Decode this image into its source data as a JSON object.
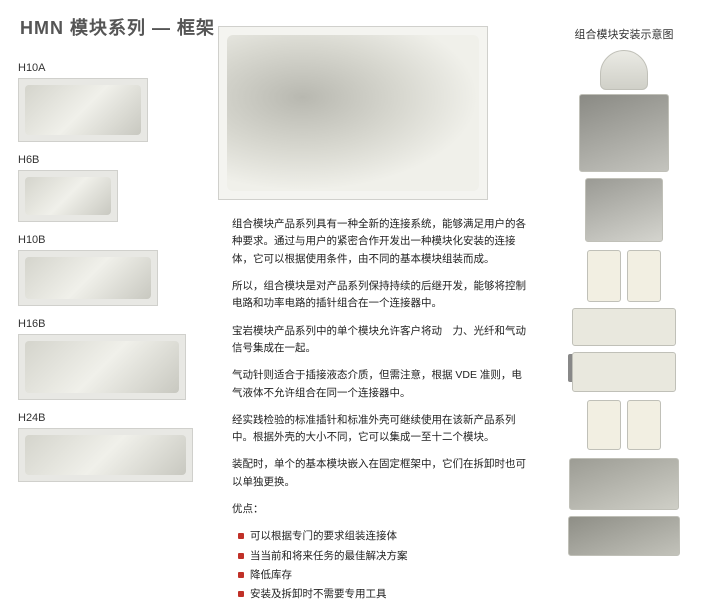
{
  "title": "HMN 模块系列 — 框架",
  "left_products": [
    {
      "label": "H10A",
      "img_class": "img-h10a"
    },
    {
      "label": "H6B",
      "img_class": "img-h6b"
    },
    {
      "label": "H10B",
      "img_class": "img-h10b"
    },
    {
      "label": "H16B",
      "img_class": "img-h16b"
    },
    {
      "label": "H24B",
      "img_class": "img-h24b"
    }
  ],
  "paragraphs": [
    "组合模块产品系列具有一种全新的连接系统，能够满足用户的各种要求。通过与用户的紧密合作开发出一种模块化安装的连接体，它可以根据使用条件，由不同的基本模块组装而成。",
    "所以，组合模块是对产品系列保持持续的后继开发，能够将控制电路和功率电路的插针组合在一个连接器中。",
    "宝岩模块产品系列中的单个模块允许客户将动　力、光纤和气动信号集成在一起。",
    "气动针则适合于插接液态介质，但需注意，根据 VDE 准则，电气液体不允许组合在同一个连接器中。",
    "经实践检验的标准插针和标准外壳可继续使用在该新产品系列中。根据外壳的大小不同，它可以集成一至十二个模块。",
    "装配时，单个的基本模块嵌入在固定框架中，它们在拆卸时也可以单独更换。"
  ],
  "advantages_title": "优点：",
  "advantages": [
    "可以根据专门的要求组装连接体",
    "当当前和将来任务的最佳解决方案",
    "降低库存",
    "安装及拆卸时不需要专用工具"
  ],
  "right_title": "组合模块安装示意图",
  "colors": {
    "title_color": "#555555",
    "text_color": "#222222",
    "bullet_color": "#c03028",
    "background": "#ffffff"
  }
}
